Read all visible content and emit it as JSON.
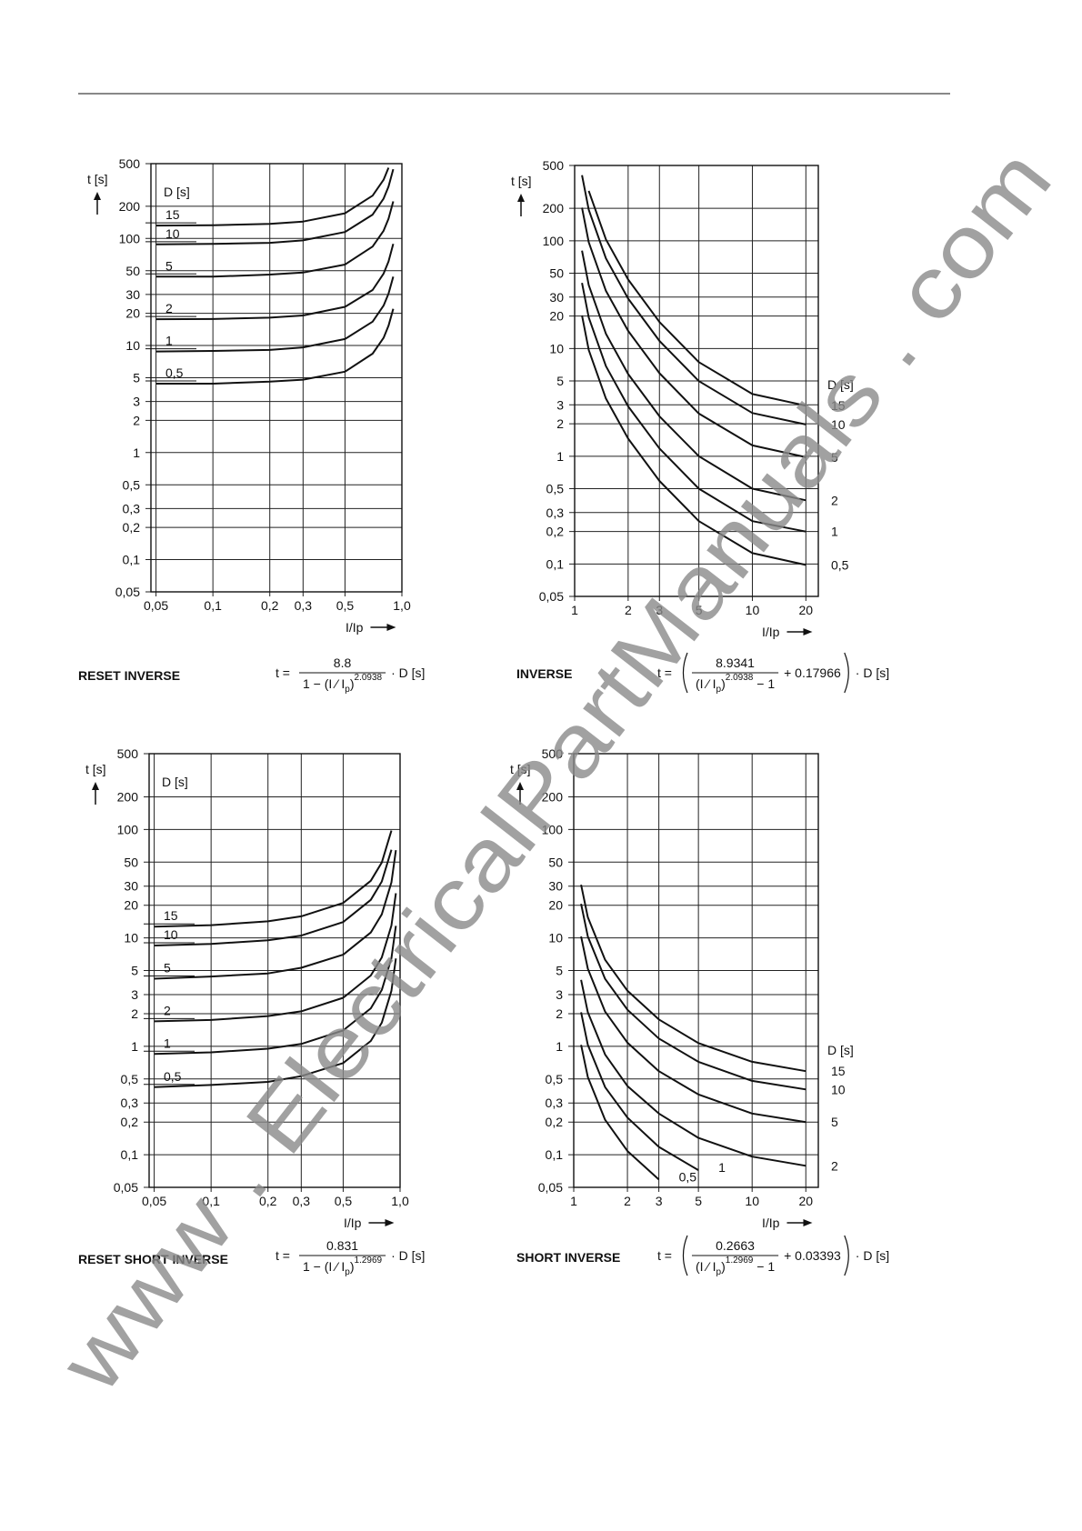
{
  "watermark": "www . ElectricalPartManuals . com",
  "chart_data": [
    {
      "type": "line",
      "title": "RESET INVERSE",
      "formula": {
        "lhs": "t =",
        "numerator": "8.8",
        "denominator": {
          "pre": "1 − (I ⁄ I",
          "sub": "p",
          "close": ")",
          "sup": "2.0938"
        },
        "tail": "· D  [s]"
      },
      "x_label": "I/Ip",
      "y_label": "t [s]",
      "legend_title": "D [s]",
      "log_x": true,
      "log_y": true,
      "grid": true,
      "color": "#111111",
      "xlim": [
        0.047,
        1
      ],
      "ylim": [
        0.05,
        500
      ],
      "xticks": [
        {
          "value": 0.05,
          "label": "0,05"
        },
        {
          "value": 0.1,
          "label": "0,1"
        },
        {
          "value": 0.2,
          "label": "0,2"
        },
        {
          "value": 0.3,
          "label": "0,3"
        },
        {
          "value": 0.5,
          "label": "0,5"
        },
        {
          "value": 1,
          "label": "1,0"
        }
      ],
      "yticks": [
        {
          "value": 0.05,
          "label": "0,05"
        },
        {
          "value": 0.1,
          "label": "0,1"
        },
        {
          "value": 0.2,
          "label": "0,2"
        },
        {
          "value": 0.3,
          "label": "0,3"
        },
        {
          "value": 0.5,
          "label": "0,5"
        },
        1,
        2,
        3,
        5,
        10,
        20,
        30,
        50,
        100,
        200,
        500
      ],
      "x": [
        0.05,
        0.1,
        0.2,
        0.3,
        0.5,
        0.7,
        0.8,
        0.85,
        0.9
      ],
      "series": [
        {
          "name": "15",
          "values": [
            132,
            133,
            137,
            144,
            172,
            251,
            354,
            458,
            null
          ]
        },
        {
          "name": "10",
          "values": [
            88,
            89,
            91,
            96,
            115,
            167,
            236,
            305,
            444
          ]
        },
        {
          "name": "5",
          "values": [
            44,
            44,
            46,
            48,
            57,
            84,
            118,
            153,
            222
          ]
        },
        {
          "name": "2",
          "values": [
            17.6,
            17.7,
            18.2,
            19.1,
            23,
            33,
            47,
            61,
            89
          ]
        },
        {
          "name": "1",
          "values": [
            8.8,
            8.9,
            9.1,
            9.6,
            11.5,
            16.7,
            23.6,
            30.5,
            44
          ]
        },
        {
          "name": "0,5",
          "values": [
            4.4,
            4.4,
            4.6,
            4.8,
            5.7,
            8.4,
            11.8,
            15.3,
            22
          ]
        }
      ]
    },
    {
      "type": "line",
      "title": "INVERSE",
      "formula": {
        "lhs": "t =",
        "numerator": "8.9341",
        "denominator": {
          "pre": "(I ⁄ I",
          "sub": "p",
          "close": ")",
          "sup": "2.0938",
          "post": " − 1"
        },
        "addend": "+ 0.17966",
        "tail": "· D  [s]"
      },
      "x_label": "I/Ip",
      "y_label": "t [s]",
      "legend_title": "D [s]",
      "log_x": true,
      "log_y": true,
      "grid": true,
      "color": "#111111",
      "xlim": [
        1,
        23.5
      ],
      "ylim": [
        0.05,
        500
      ],
      "xticks": [
        1,
        2,
        3,
        5,
        10,
        20
      ],
      "yticks": [
        {
          "value": 0.05,
          "label": "0,05"
        },
        {
          "value": 0.1,
          "label": "0,1"
        },
        {
          "value": 0.2,
          "label": "0,2"
        },
        {
          "value": 0.3,
          "label": "0,3"
        },
        {
          "value": 0.5,
          "label": "0,5"
        },
        1,
        2,
        3,
        5,
        10,
        20,
        30,
        50,
        100,
        200,
        500
      ],
      "x": [
        1.1,
        1.2,
        1.5,
        2,
        3,
        5,
        10,
        20
      ],
      "series": [
        {
          "name": "15",
          "values": [
            null,
            291,
            103,
            43.7,
            17.6,
            7.47,
            3.78,
            2.95
          ]
        },
        {
          "name": "10",
          "values": [
            406,
            194,
            68.6,
            29.1,
            11.75,
            4.98,
            2.52,
            1.97
          ]
        },
        {
          "name": "5",
          "values": [
            203,
            97,
            34.3,
            14.6,
            5.9,
            2.49,
            1.26,
            0.98
          ]
        },
        {
          "name": "2",
          "values": [
            81,
            38.8,
            13.7,
            5.8,
            2.35,
            1.0,
            0.5,
            0.39
          ]
        },
        {
          "name": "1",
          "values": [
            40.6,
            19.4,
            6.86,
            2.91,
            1.18,
            0.5,
            0.25,
            0.2
          ]
        },
        {
          "name": "0,5",
          "values": [
            20.3,
            9.7,
            3.43,
            1.46,
            0.59,
            0.25,
            0.126,
            0.098
          ]
        }
      ]
    },
    {
      "type": "line",
      "title": "RESET SHORT INVERSE",
      "formula": {
        "lhs": "t =",
        "numerator": "0.831",
        "denominator": {
          "pre": "1 − (I ⁄ I",
          "sub": "p",
          "close": ")",
          "sup": "1.2969"
        },
        "tail": "· D  [s]"
      },
      "x_label": "I/Ip",
      "y_label": "t [s]",
      "legend_title": "D [s]",
      "log_x": true,
      "log_y": true,
      "grid": true,
      "color": "#111111",
      "xlim": [
        0.047,
        1
      ],
      "ylim": [
        0.05,
        500
      ],
      "xticks": [
        {
          "value": 0.05,
          "label": "0,05"
        },
        {
          "value": 0.1,
          "label": "0,1"
        },
        {
          "value": 0.2,
          "label": "0,2"
        },
        {
          "value": 0.3,
          "label": "0,3"
        },
        {
          "value": 0.5,
          "label": "0,5"
        },
        {
          "value": 1,
          "label": "1,0"
        }
      ],
      "yticks": [
        {
          "value": 0.05,
          "label": "0,05"
        },
        {
          "value": 0.1,
          "label": "0,1"
        },
        {
          "value": 0.2,
          "label": "0,2"
        },
        {
          "value": 0.3,
          "label": "0,3"
        },
        {
          "value": 0.5,
          "label": "0,5"
        },
        1,
        2,
        3,
        5,
        10,
        20,
        30,
        50,
        100,
        200,
        500
      ],
      "x": [
        0.05,
        0.1,
        0.2,
        0.3,
        0.5,
        0.7,
        0.8,
        0.9,
        0.95
      ],
      "series": [
        {
          "name": "15",
          "values": [
            12.7,
            13.1,
            14.2,
            15.8,
            21,
            33.6,
            49.6,
            97.6,
            null
          ]
        },
        {
          "name": "10",
          "values": [
            8.5,
            8.8,
            9.5,
            10.5,
            14,
            22.4,
            33.1,
            65,
            null
          ]
        },
        {
          "name": "5",
          "values": [
            4.2,
            4.4,
            4.7,
            5.3,
            7,
            11.2,
            16.5,
            32.5,
            64.5
          ]
        },
        {
          "name": "2",
          "values": [
            1.7,
            1.75,
            1.9,
            2.1,
            2.8,
            4.5,
            6.6,
            13,
            25.8
          ]
        },
        {
          "name": "1",
          "values": [
            0.85,
            0.88,
            0.95,
            1.05,
            1.4,
            2.24,
            3.31,
            6.5,
            12.9
          ]
        },
        {
          "name": "0,5",
          "values": [
            0.42,
            0.44,
            0.47,
            0.53,
            0.7,
            1.12,
            1.65,
            3.25,
            6.45
          ]
        }
      ]
    },
    {
      "type": "line",
      "title": "SHORT INVERSE",
      "formula": {
        "lhs": "t =",
        "numerator": "0.2663",
        "denominator": {
          "pre": "(I ⁄ I",
          "sub": "p",
          "close": ")",
          "sup": "1.2969",
          "post": " − 1"
        },
        "addend": "+ 0.03393",
        "tail": "· D  [s]"
      },
      "x_label": "I/Ip",
      "y_label": "t [s]",
      "legend_title": "D [s]",
      "log_x": true,
      "log_y": true,
      "grid": true,
      "color": "#111111",
      "xlim": [
        1,
        23.5
      ],
      "ylim": [
        0.05,
        500
      ],
      "xticks": [
        1,
        2,
        3,
        5,
        10,
        20
      ],
      "yticks": [
        {
          "value": 0.05,
          "label": "0,05"
        },
        {
          "value": 0.1,
          "label": "0,1"
        },
        {
          "value": 0.2,
          "label": "0,2"
        },
        {
          "value": 0.3,
          "label": "0,3"
        },
        {
          "value": 0.5,
          "label": "0,5"
        },
        1,
        2,
        3,
        5,
        10,
        20,
        30,
        50,
        100,
        200,
        500
      ],
      "x": [
        1.1,
        1.2,
        1.5,
        2,
        3,
        5,
        10,
        20
      ],
      "series": [
        {
          "name": "15",
          "values": [
            30.9,
            15.5,
            6.28,
            3.25,
            1.77,
            1.07,
            0.72,
            0.59
          ]
        },
        {
          "name": "10",
          "values": [
            20.6,
            10.3,
            4.19,
            2.17,
            1.18,
            0.72,
            0.48,
            0.4
          ]
        },
        {
          "name": "5",
          "values": [
            10.3,
            5.2,
            2.09,
            1.08,
            0.59,
            0.36,
            0.24,
            0.2
          ]
        },
        {
          "name": "2",
          "values": [
            4.1,
            2.06,
            0.84,
            0.43,
            0.24,
            0.143,
            0.096,
            0.079
          ]
        },
        {
          "name": "1",
          "values": [
            2.06,
            1.03,
            0.42,
            0.22,
            0.118,
            0.072,
            null,
            null
          ]
        },
        {
          "name": "0,5",
          "values": [
            1.03,
            0.52,
            0.21,
            0.108,
            0.059,
            null,
            null,
            null
          ]
        }
      ]
    }
  ]
}
